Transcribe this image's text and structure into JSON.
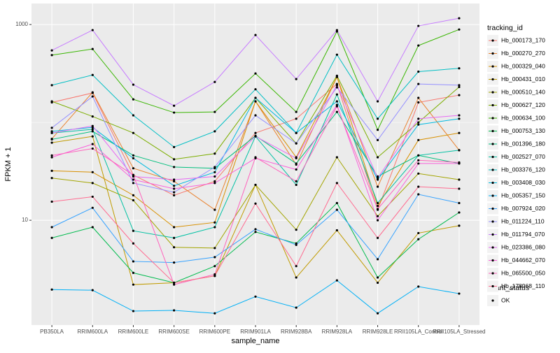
{
  "chart_data": {
    "type": "line",
    "x_label": "sample_name",
    "y_label": "FPKM + 1",
    "log_y": true,
    "grid": true,
    "categories": [
      "PB350LA",
      "RRIM600LA",
      "RRIM600LE",
      "RRIM600SE",
      "RRIM600PE",
      "RRIM901LA",
      "RRIM928BA",
      "RRIM928LA",
      "RRIM928LE",
      "RRII105LA_Control",
      "RRII105LA_Stressed"
    ],
    "ylim": [
      0.85,
      1640
    ],
    "yticks": [
      10,
      1000
    ],
    "legend_title": "tracking_id",
    "series": [
      {
        "name": "Hb_000173_170",
        "color": "#F8766D",
        "values": [
          160,
          200,
          29,
          18,
          25,
          78,
          109,
          247,
          12.8,
          160,
          190
        ]
      },
      {
        "name": "Hb_000270_270",
        "color": "#EA8331",
        "values": [
          68,
          203,
          34,
          25,
          12.8,
          164,
          37,
          291,
          22,
          178,
          52
        ]
      },
      {
        "name": "Hb_000329_040",
        "color": "#D89000",
        "values": [
          32,
          31,
          18,
          8.5,
          9.5,
          164,
          44,
          291,
          14,
          66,
          78
        ]
      },
      {
        "name": "Hb_000431_010",
        "color": "#C09B00",
        "values": [
          62,
          72,
          2.2,
          2.3,
          2.7,
          23,
          2.6,
          7.9,
          2.3,
          7.4,
          8.8
        ]
      },
      {
        "name": "Hb_000510_140",
        "color": "#A3A500",
        "values": [
          27,
          24,
          16,
          5.3,
          5.2,
          23,
          8,
          44,
          11,
          30,
          26
        ]
      },
      {
        "name": "Hb_000627_120",
        "color": "#7CAE00",
        "values": [
          164,
          115,
          78,
          42,
          48,
          178,
          61,
          300,
          44,
          100,
          230
        ]
      },
      {
        "name": "Hb_000634_100",
        "color": "#39B600",
        "values": [
          487,
          562,
          172,
          126,
          128,
          316,
          128,
          850,
          84,
          610,
          890
        ]
      },
      {
        "name": "Hb_000753_130",
        "color": "#00BB4E",
        "values": [
          6.6,
          8.5,
          2.9,
          2.3,
          3.4,
          7.6,
          5.8,
          15,
          2.6,
          6.4,
          12
        ]
      },
      {
        "name": "Hb_001396_180",
        "color": "#00BF7D",
        "values": [
          67,
          81,
          46,
          35,
          34,
          73,
          38,
          128,
          28,
          46,
          38
        ]
      },
      {
        "name": "Hb_002527_070",
        "color": "#00C1A3",
        "values": [
          78,
          85,
          7.8,
          6.6,
          8.5,
          72,
          23,
          193,
          15,
          46,
          52
        ]
      },
      {
        "name": "Hb_003376_120",
        "color": "#00BFC4",
        "values": [
          240,
          305,
          118,
          56,
          81,
          218,
          78,
          492,
          109,
          330,
          357
        ]
      },
      {
        "name": "Hb_003408_030",
        "color": "#00BAE0",
        "values": [
          81,
          89,
          43,
          22.5,
          31,
          178,
          78,
          164,
          26,
          95,
          109
        ]
      },
      {
        "name": "Hb_005357_150",
        "color": "#00B0F6",
        "values": [
          1.96,
          1.93,
          1.18,
          1.2,
          1.12,
          1.66,
          1.28,
          2.43,
          1.12,
          2.1,
          1.78
        ]
      },
      {
        "name": "Hb_007924_020",
        "color": "#35A2FF",
        "values": [
          8.5,
          13.4,
          3.8,
          3.7,
          4.2,
          8.1,
          5.6,
          12.8,
          4.0,
          18.4,
          15
        ]
      },
      {
        "name": "Hb_011224_110",
        "color": "#9590FF",
        "values": [
          88,
          184,
          24,
          19.3,
          35,
          118,
          61,
          228,
          66,
          247,
          240
        ]
      },
      {
        "name": "Hb_011794_070",
        "color": "#C77CFF",
        "values": [
          544,
          877,
          243,
          148,
          259,
          781,
          277,
          877,
          164,
          968,
          1159
        ]
      },
      {
        "name": "Hb_023386_080",
        "color": "#E76BF3",
        "values": [
          78,
          92,
          28,
          26,
          28,
          72,
          43,
          240,
          27,
          109,
          118
        ]
      },
      {
        "name": "Hb_044662_070",
        "color": "#FA62DB",
        "values": [
          44,
          60,
          26,
          21,
          24,
          43,
          33,
          151,
          10,
          38,
          38
        ]
      },
      {
        "name": "Hb_065500_050",
        "color": "#FF62BC",
        "values": [
          46,
          54,
          29,
          2.2,
          2.8,
          44,
          25,
          146,
          13,
          41,
          39
        ]
      },
      {
        "name": "Hb_178968_110",
        "color": "#FF6C91",
        "values": [
          15.5,
          17.4,
          5.8,
          2.3,
          2.7,
          14.8,
          3.4,
          24,
          6.6,
          22,
          21
        ]
      }
    ],
    "point_legend_title": "quant_status",
    "point_legend_label": "OK",
    "point_color": "#000000"
  }
}
